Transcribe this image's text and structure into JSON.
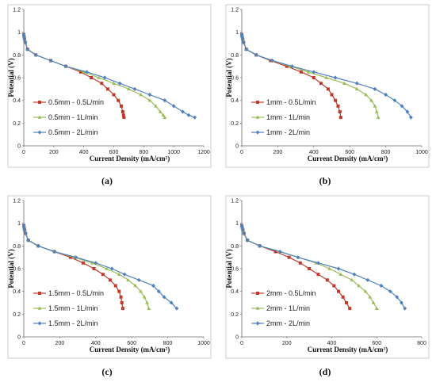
{
  "chart_data": [
    {
      "type": "line",
      "panel_label": "(a)",
      "xlabel": "Current Density (mA/cm²)",
      "ylabel": "Potential (V)",
      "xlim": [
        0,
        1200
      ],
      "ylim": [
        0,
        1.2
      ],
      "xticks": [
        "0",
        "200",
        "400",
        "600",
        "800",
        "1000",
        "1200"
      ],
      "yticks": [
        "0",
        "0.2",
        "0.4",
        "0.6",
        "0.8",
        "1",
        "1.2"
      ],
      "legend_position": "lower-left",
      "series": [
        {
          "name": "0.5mm - 0.5L/min",
          "color": "#c0392b",
          "marker": "square",
          "x": [
            0,
            2,
            5,
            10,
            25,
            80,
            180,
            280,
            380,
            450,
            520,
            560,
            600,
            630,
            650,
            660,
            665,
            668
          ],
          "y": [
            0.98,
            0.96,
            0.94,
            0.91,
            0.85,
            0.8,
            0.75,
            0.7,
            0.65,
            0.6,
            0.55,
            0.5,
            0.45,
            0.4,
            0.35,
            0.3,
            0.27,
            0.25
          ]
        },
        {
          "name": "0.5mm - 1L/min",
          "color": "#9bbb59",
          "marker": "triangle",
          "x": [
            0,
            2,
            5,
            10,
            25,
            80,
            180,
            280,
            400,
            500,
            600,
            700,
            780,
            840,
            880,
            910,
            930,
            940
          ],
          "y": [
            0.98,
            0.96,
            0.94,
            0.91,
            0.85,
            0.8,
            0.75,
            0.7,
            0.65,
            0.6,
            0.55,
            0.5,
            0.45,
            0.4,
            0.35,
            0.3,
            0.27,
            0.25
          ]
        },
        {
          "name": "0.5mm - 2L/min",
          "color": "#4f81bd",
          "marker": "diamond",
          "x": [
            0,
            2,
            5,
            10,
            25,
            80,
            180,
            280,
            420,
            540,
            640,
            740,
            840,
            940,
            1000,
            1060,
            1100,
            1140
          ],
          "y": [
            0.98,
            0.96,
            0.94,
            0.91,
            0.85,
            0.8,
            0.75,
            0.7,
            0.65,
            0.6,
            0.55,
            0.5,
            0.45,
            0.4,
            0.35,
            0.3,
            0.27,
            0.25
          ]
        }
      ]
    },
    {
      "type": "line",
      "panel_label": "(b)",
      "xlabel": "Current Density (mA/cm²)",
      "ylabel": "Potential (V)",
      "xlim": [
        0,
        1000
      ],
      "ylim": [
        0,
        1.2
      ],
      "xticks": [
        "0",
        "200",
        "400",
        "600",
        "800",
        "1000"
      ],
      "yticks": [
        "0",
        "0.2",
        "0.4",
        "0.6",
        "0.8",
        "1",
        "1.2"
      ],
      "legend_position": "lower-left",
      "series": [
        {
          "name": "1mm - 0.5L/min",
          "color": "#c0392b",
          "marker": "square",
          "x": [
            0,
            2,
            5,
            10,
            25,
            80,
            160,
            250,
            330,
            400,
            440,
            480,
            500,
            520,
            535,
            545,
            550
          ],
          "y": [
            0.98,
            0.96,
            0.94,
            0.91,
            0.85,
            0.8,
            0.75,
            0.7,
            0.65,
            0.6,
            0.55,
            0.5,
            0.45,
            0.4,
            0.35,
            0.3,
            0.25
          ]
        },
        {
          "name": "1mm - 1L/min",
          "color": "#9bbb59",
          "marker": "triangle",
          "x": [
            0,
            2,
            5,
            10,
            25,
            80,
            170,
            270,
            370,
            470,
            570,
            640,
            690,
            720,
            740,
            750,
            758
          ],
          "y": [
            0.98,
            0.96,
            0.94,
            0.91,
            0.85,
            0.8,
            0.75,
            0.7,
            0.65,
            0.6,
            0.55,
            0.5,
            0.45,
            0.4,
            0.35,
            0.3,
            0.25
          ]
        },
        {
          "name": "1mm - 2L/min",
          "color": "#4f81bd",
          "marker": "diamond",
          "x": [
            0,
            2,
            5,
            10,
            25,
            80,
            170,
            280,
            400,
            520,
            640,
            740,
            800,
            850,
            890,
            920,
            940
          ],
          "y": [
            0.98,
            0.96,
            0.94,
            0.91,
            0.85,
            0.8,
            0.75,
            0.7,
            0.65,
            0.6,
            0.55,
            0.5,
            0.45,
            0.4,
            0.35,
            0.3,
            0.25
          ]
        }
      ]
    },
    {
      "type": "line",
      "panel_label": "(c)",
      "xlabel": "Current Density (mA/cm²)",
      "ylabel": "Potential (V)",
      "xlim": [
        0,
        1000
      ],
      "ylim": [
        0,
        1.2
      ],
      "xticks": [
        "0",
        "200",
        "400",
        "600",
        "800",
        "1000"
      ],
      "yticks": [
        "0",
        "0.2",
        "0.4",
        "0.6",
        "0.8",
        "1",
        "1.2"
      ],
      "legend_position": "lower-left",
      "series": [
        {
          "name": "1.5mm - 0.5L/min",
          "color": "#c0392b",
          "marker": "square",
          "x": [
            0,
            2,
            5,
            10,
            25,
            80,
            170,
            260,
            330,
            390,
            440,
            480,
            510,
            530,
            540,
            545,
            550
          ],
          "y": [
            0.98,
            0.96,
            0.94,
            0.91,
            0.85,
            0.8,
            0.75,
            0.7,
            0.65,
            0.6,
            0.55,
            0.5,
            0.45,
            0.4,
            0.35,
            0.3,
            0.25
          ]
        },
        {
          "name": "1.5mm - 1L/min",
          "color": "#9bbb59",
          "marker": "triangle",
          "x": [
            0,
            2,
            5,
            10,
            25,
            80,
            170,
            280,
            380,
            460,
            530,
            580,
            620,
            650,
            670,
            685,
            695
          ],
          "y": [
            0.98,
            0.96,
            0.94,
            0.91,
            0.85,
            0.8,
            0.75,
            0.7,
            0.65,
            0.6,
            0.55,
            0.5,
            0.45,
            0.4,
            0.35,
            0.3,
            0.25
          ]
        },
        {
          "name": "1.5mm - 2L/min",
          "color": "#4f81bd",
          "marker": "diamond",
          "x": [
            0,
            2,
            5,
            10,
            25,
            80,
            170,
            290,
            400,
            490,
            560,
            640,
            720,
            750,
            780,
            820,
            850
          ],
          "y": [
            0.98,
            0.96,
            0.94,
            0.91,
            0.85,
            0.8,
            0.75,
            0.7,
            0.65,
            0.6,
            0.55,
            0.5,
            0.45,
            0.4,
            0.35,
            0.3,
            0.25
          ]
        }
      ]
    },
    {
      "type": "line",
      "panel_label": "(d)",
      "xlabel": "Current Density (mA/cm²)",
      "ylabel": "Potential (V)",
      "xlim": [
        0,
        800
      ],
      "ylim": [
        0,
        1.2
      ],
      "xticks": [
        "0",
        "200",
        "400",
        "600",
        "800"
      ],
      "yticks": [
        "0",
        "0.2",
        "0.4",
        "0.6",
        "0.8",
        "1",
        "1.2"
      ],
      "legend_position": "lower-left",
      "series": [
        {
          "name": "2mm - 0.5L/min",
          "color": "#c0392b",
          "marker": "square",
          "x": [
            0,
            2,
            5,
            10,
            25,
            80,
            150,
            210,
            260,
            300,
            340,
            380,
            410,
            430,
            450,
            465,
            480
          ],
          "y": [
            0.98,
            0.96,
            0.94,
            0.91,
            0.85,
            0.8,
            0.75,
            0.7,
            0.65,
            0.6,
            0.55,
            0.5,
            0.45,
            0.4,
            0.35,
            0.3,
            0.25
          ]
        },
        {
          "name": "2mm - 1L/min",
          "color": "#9bbb59",
          "marker": "triangle",
          "x": [
            0,
            2,
            5,
            10,
            25,
            80,
            170,
            250,
            330,
            390,
            440,
            490,
            520,
            550,
            570,
            585,
            600
          ],
          "y": [
            0.98,
            0.96,
            0.94,
            0.91,
            0.85,
            0.8,
            0.75,
            0.7,
            0.65,
            0.6,
            0.55,
            0.5,
            0.45,
            0.4,
            0.35,
            0.3,
            0.25
          ]
        },
        {
          "name": "2mm - 2L/min",
          "color": "#4f81bd",
          "marker": "diamond",
          "x": [
            0,
            2,
            5,
            10,
            25,
            80,
            170,
            250,
            340,
            430,
            500,
            560,
            620,
            660,
            690,
            710,
            725
          ],
          "y": [
            0.98,
            0.96,
            0.94,
            0.91,
            0.85,
            0.8,
            0.75,
            0.7,
            0.65,
            0.6,
            0.55,
            0.5,
            0.45,
            0.4,
            0.35,
            0.3,
            0.25
          ]
        }
      ]
    }
  ]
}
